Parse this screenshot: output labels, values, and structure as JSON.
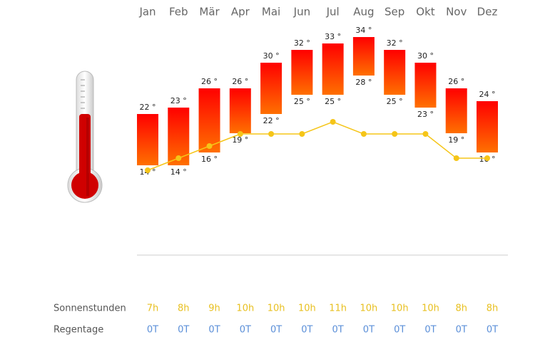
{
  "chart_data": {
    "type": "range-bar",
    "categories": [
      "Jan",
      "Feb",
      "Mär",
      "Apr",
      "Mai",
      "Jun",
      "Jul",
      "Aug",
      "Sep",
      "Okt",
      "Nov",
      "Dez"
    ],
    "max": {
      "values": [
        22,
        23,
        26,
        26,
        30,
        32,
        33,
        34,
        32,
        30,
        26,
        24
      ],
      "value_labels": [
        "22 °",
        "23 °",
        "26 °",
        "26 °",
        "30 °",
        "32 °",
        "33 °",
        "34 °",
        "32 °",
        "30 °",
        "26 °",
        "24 °"
      ]
    },
    "min": {
      "values": [
        14,
        14,
        16,
        19,
        22,
        25,
        25,
        28,
        25,
        23,
        19,
        16
      ],
      "value_labels": [
        "14 °",
        "14 °",
        "16 °",
        "19 °",
        "22 °",
        "25 °",
        "25 °",
        "28 °",
        "25 °",
        "23 °",
        "19 °",
        "16 °"
      ]
    },
    "ylim": [
      0,
      40
    ],
    "bar_colors": [
      "#ff0000",
      "#ff7000"
    ],
    "sun": {
      "name": "Sonnenstunden",
      "color": "#f5c518",
      "text_color": "#e8c020",
      "values": [
        7,
        8,
        9,
        10,
        10,
        10,
        11,
        10,
        10,
        10,
        8,
        8
      ],
      "value_labels": [
        "7h",
        "8h",
        "9h",
        "10h",
        "10h",
        "10h",
        "11h",
        "10h",
        "10h",
        "10h",
        "8h",
        "8h"
      ]
    },
    "y2lim": [
      0,
      20
    ],
    "rain": {
      "name": "Regentage",
      "color": "#5b8fd8",
      "values": [
        0,
        0,
        0,
        0,
        0,
        0,
        0,
        0,
        0,
        0,
        0,
        0
      ],
      "value_labels": [
        "0T",
        "0T",
        "0T",
        "0T",
        "0T",
        "0T",
        "0T",
        "0T",
        "0T",
        "0T",
        "0T",
        "0T"
      ]
    }
  }
}
